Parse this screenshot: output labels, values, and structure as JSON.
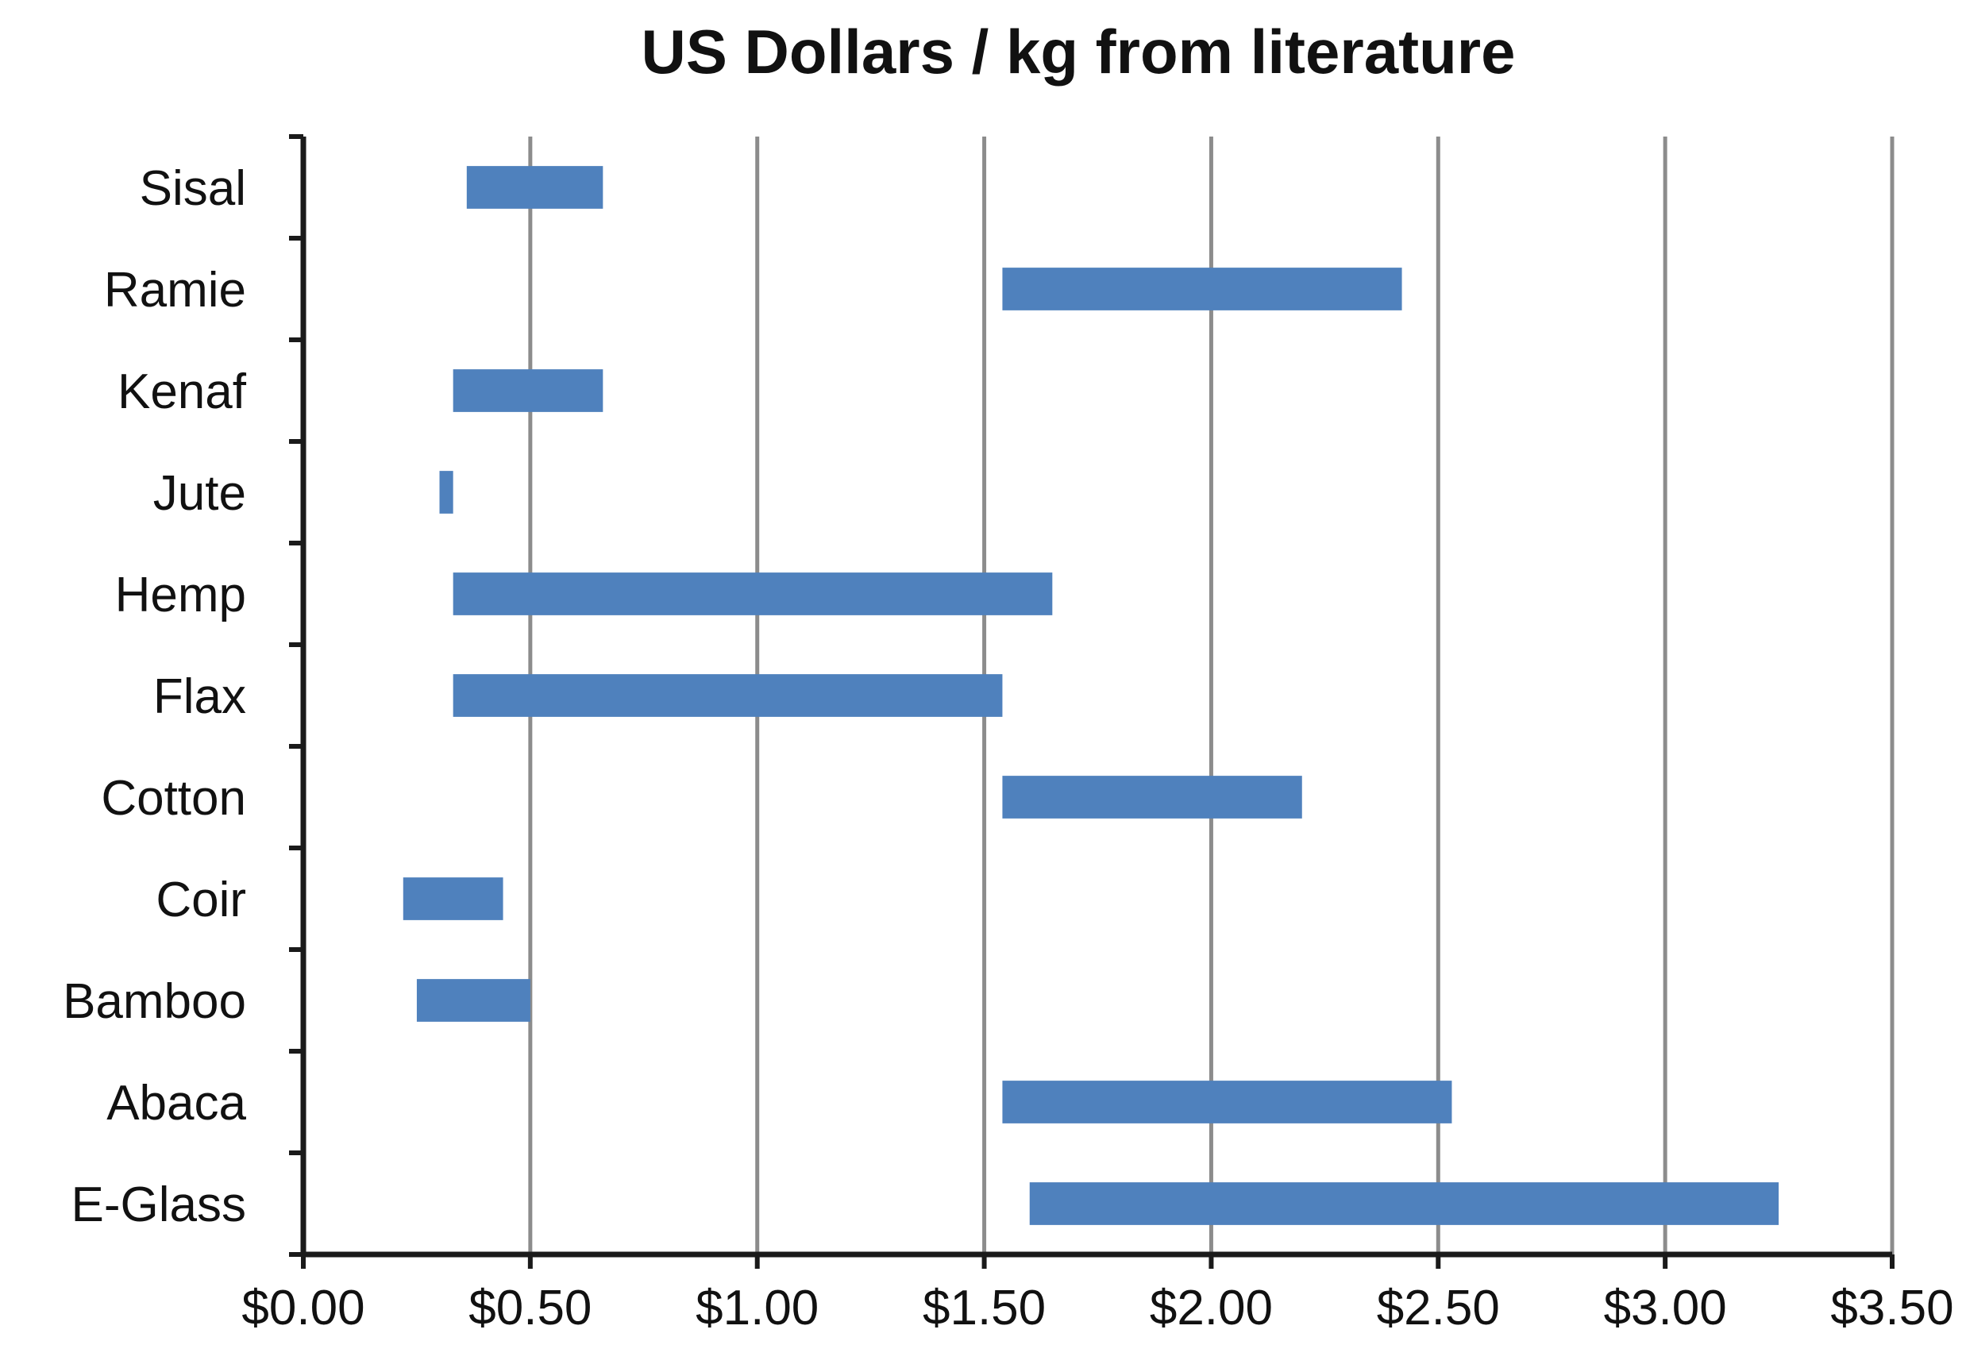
{
  "chart_data": {
    "type": "bar",
    "orientation": "horizontal",
    "subtype": "floating-range",
    "title": "US Dollars / kg from literature",
    "xlabel": "",
    "ylabel": "",
    "xlim": [
      0,
      3.5
    ],
    "x_ticks": [
      0,
      0.5,
      1,
      1.5,
      2,
      2.5,
      3,
      3.5
    ],
    "x_tick_labels": [
      "$0.00",
      "$0.50",
      "$1.00",
      "$1.50",
      "$2.00",
      "$2.50",
      "$3.00",
      "$3.50"
    ],
    "grid": true,
    "legend": "none",
    "bar_color": "#4f81bd",
    "categories": [
      "Sisal",
      "Ramie",
      "Kenaf",
      "Jute",
      "Hemp",
      "Flax",
      "Cotton",
      "Coir",
      "Bamboo",
      "Abaca",
      "E-Glass"
    ],
    "ranges": [
      [
        0.36,
        0.66
      ],
      [
        1.54,
        2.42
      ],
      [
        0.33,
        0.66
      ],
      [
        0.3,
        0.33
      ],
      [
        0.33,
        1.65
      ],
      [
        0.33,
        1.54
      ],
      [
        1.54,
        2.2
      ],
      [
        0.22,
        0.44
      ],
      [
        0.25,
        0.5
      ],
      [
        1.54,
        2.53
      ],
      [
        1.6,
        3.25
      ]
    ]
  }
}
